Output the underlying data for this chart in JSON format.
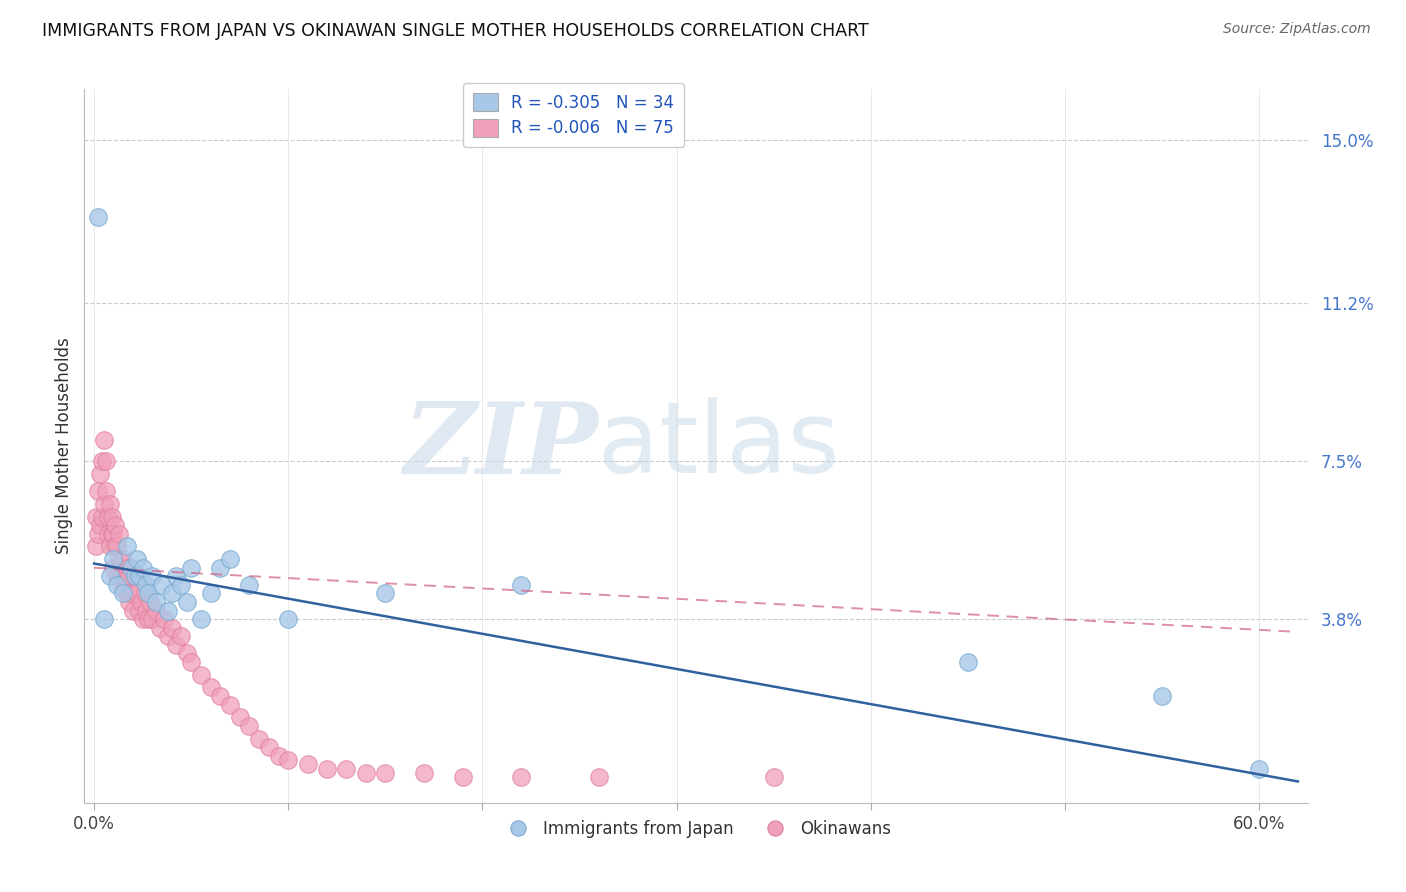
{
  "title": "IMMIGRANTS FROM JAPAN VS OKINAWAN SINGLE MOTHER HOUSEHOLDS CORRELATION CHART",
  "source": "Source: ZipAtlas.com",
  "ylabel": "Single Mother Households",
  "y_ticks_right": [
    0.038,
    0.075,
    0.112,
    0.15
  ],
  "y_tick_labels_right": [
    "3.8%",
    "7.5%",
    "11.2%",
    "15.0%"
  ],
  "y_min": -0.005,
  "y_max": 0.162,
  "x_min": -0.005,
  "x_max": 0.625,
  "blue_label": "Immigrants from Japan",
  "pink_label": "Okinawans",
  "blue_r": "-0.305",
  "blue_n": "34",
  "pink_r": "-0.006",
  "pink_n": "75",
  "blue_color": "#a8c8e8",
  "pink_color": "#f0a0b8",
  "blue_edge_color": "#7aaad0",
  "pink_edge_color": "#e080a0",
  "blue_line_color": "#3060a0",
  "pink_line_color": "#d06080",
  "watermark_zip": "ZIP",
  "watermark_atlas": "atlas",
  "blue_line_x": [
    0.0,
    0.62
  ],
  "blue_line_y": [
    0.051,
    0.0
  ],
  "pink_line_x": [
    0.0,
    0.62
  ],
  "pink_line_y": [
    0.05,
    0.035
  ],
  "blue_scatter_x": [
    0.002,
    0.005,
    0.008,
    0.01,
    0.012,
    0.015,
    0.017,
    0.019,
    0.021,
    0.022,
    0.023,
    0.025,
    0.027,
    0.028,
    0.03,
    0.032,
    0.035,
    0.038,
    0.04,
    0.042,
    0.045,
    0.048,
    0.05,
    0.055,
    0.06,
    0.065,
    0.07,
    0.08,
    0.1,
    0.15,
    0.22,
    0.45,
    0.55,
    0.6
  ],
  "blue_scatter_y": [
    0.132,
    0.038,
    0.048,
    0.052,
    0.046,
    0.044,
    0.055,
    0.05,
    0.048,
    0.052,
    0.048,
    0.05,
    0.046,
    0.044,
    0.048,
    0.042,
    0.046,
    0.04,
    0.044,
    0.048,
    0.046,
    0.042,
    0.05,
    0.038,
    0.044,
    0.05,
    0.052,
    0.046,
    0.038,
    0.044,
    0.046,
    0.028,
    0.02,
    0.003
  ],
  "pink_scatter_x": [
    0.001,
    0.001,
    0.002,
    0.002,
    0.003,
    0.003,
    0.004,
    0.004,
    0.005,
    0.005,
    0.006,
    0.006,
    0.007,
    0.007,
    0.008,
    0.008,
    0.009,
    0.009,
    0.01,
    0.01,
    0.011,
    0.011,
    0.012,
    0.012,
    0.013,
    0.013,
    0.014,
    0.015,
    0.015,
    0.016,
    0.017,
    0.017,
    0.018,
    0.018,
    0.019,
    0.02,
    0.021,
    0.022,
    0.023,
    0.024,
    0.025,
    0.026,
    0.027,
    0.028,
    0.029,
    0.03,
    0.032,
    0.034,
    0.036,
    0.038,
    0.04,
    0.042,
    0.045,
    0.048,
    0.05,
    0.055,
    0.06,
    0.065,
    0.07,
    0.075,
    0.08,
    0.085,
    0.09,
    0.095,
    0.1,
    0.11,
    0.12,
    0.13,
    0.14,
    0.15,
    0.17,
    0.19,
    0.22,
    0.26,
    0.35
  ],
  "pink_scatter_y": [
    0.055,
    0.062,
    0.058,
    0.068,
    0.06,
    0.072,
    0.062,
    0.075,
    0.065,
    0.08,
    0.068,
    0.075,
    0.062,
    0.058,
    0.055,
    0.065,
    0.058,
    0.062,
    0.05,
    0.058,
    0.055,
    0.06,
    0.048,
    0.055,
    0.052,
    0.058,
    0.048,
    0.045,
    0.052,
    0.048,
    0.044,
    0.05,
    0.042,
    0.048,
    0.044,
    0.04,
    0.048,
    0.044,
    0.04,
    0.042,
    0.038,
    0.044,
    0.04,
    0.038,
    0.042,
    0.038,
    0.04,
    0.036,
    0.038,
    0.034,
    0.036,
    0.032,
    0.034,
    0.03,
    0.028,
    0.025,
    0.022,
    0.02,
    0.018,
    0.015,
    0.013,
    0.01,
    0.008,
    0.006,
    0.005,
    0.004,
    0.003,
    0.003,
    0.002,
    0.002,
    0.002,
    0.001,
    0.001,
    0.001,
    0.001
  ]
}
